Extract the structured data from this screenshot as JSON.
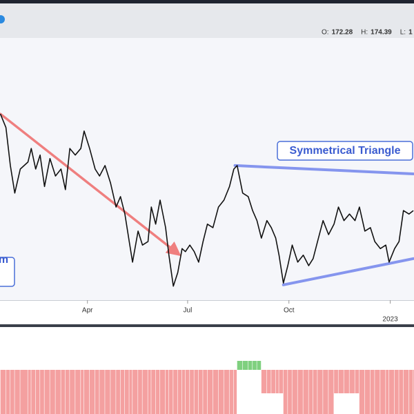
{
  "chart_data": [
    {
      "type": "line",
      "ohlc": [
        {
          "label": "O:",
          "value": "172.28"
        },
        {
          "label": "H:",
          "value": "174.39"
        },
        {
          "label": "L:",
          "value": "1"
        }
      ],
      "x": [
        11,
        16,
        20,
        24,
        29,
        36,
        39,
        43,
        47,
        51,
        56,
        61,
        66,
        70,
        74,
        79,
        84,
        87,
        92,
        97,
        101,
        106,
        111,
        116,
        120,
        124,
        128,
        131,
        136,
        140,
        145,
        148,
        152,
        156,
        161,
        164,
        168,
        172,
        176,
        179,
        183,
        187,
        191,
        195,
        199,
        204,
        209,
        214,
        219,
        223,
        226,
        231,
        236,
        240,
        244,
        248,
        253,
        257,
        261,
        264,
        268,
        272,
        276,
        281,
        286,
        291,
        295,
        299,
        304,
        309,
        314,
        318,
        323,
        328,
        333,
        337,
        342,
        347,
        351,
        356,
        361,
        364,
        369,
        373,
        377,
        382,
        386
      ],
      "values": [
        167.6,
        164.5,
        155.8,
        149.5,
        155.0,
        156.6,
        159.7,
        155.0,
        158.2,
        151.0,
        157.4,
        153.4,
        155.0,
        150.3,
        159.7,
        158.2,
        159.7,
        163.7,
        159.7,
        155.0,
        153.4,
        155.8,
        151.8,
        146.3,
        148.7,
        144.7,
        138.4,
        133.7,
        140.8,
        137.6,
        138.4,
        146.3,
        142.4,
        147.9,
        141.6,
        135.3,
        128.2,
        131.3,
        136.8,
        136.1,
        137.6,
        136.1,
        133.7,
        138.4,
        142.4,
        141.6,
        146.3,
        147.9,
        151.0,
        155.0,
        155.8,
        149.5,
        148.7,
        145.5,
        143.2,
        139.2,
        143.2,
        141.6,
        139.2,
        135.3,
        128.9,
        132.9,
        137.6,
        133.7,
        135.3,
        132.9,
        134.5,
        138.4,
        143.2,
        140.0,
        142.4,
        146.3,
        143.2,
        144.7,
        143.2,
        146.3,
        140.8,
        141.6,
        138.4,
        136.8,
        137.6,
        133.7,
        136.8,
        138.4,
        145.5,
        144.7,
        145.5
      ],
      "color": "#111111",
      "xlim": [
        10.6,
        386.6
      ],
      "ylim": [
        125,
        185
      ],
      "xticks": [
        {
          "value": 90,
          "label": "Apr"
        },
        {
          "value": 181,
          "label": "Jul"
        },
        {
          "value": 273,
          "label": "Oct"
        },
        {
          "value": 365,
          "label": "2023"
        }
      ],
      "drawings": [
        {
          "kind": "arrow",
          "color": "#ef7f7f",
          "points": [
            [
              11,
              167.6
            ],
            [
              170,
              136.1
            ]
          ]
        },
        {
          "kind": "trendline",
          "color": "#8595ee",
          "points": [
            [
              224,
              155.8
            ],
            [
              386,
              153.9
            ]
          ]
        },
        {
          "kind": "trendline",
          "color": "#8595ee",
          "points": [
            [
              268,
              128.5
            ],
            [
              386,
              134.5
            ]
          ]
        }
      ],
      "annotations": [
        "Symmetrical Triangle",
        "m"
      ]
    },
    {
      "type": "bar",
      "x": [
        11,
        16,
        20,
        24,
        29,
        36,
        39,
        43,
        47,
        51,
        56,
        61,
        66,
        70,
        74,
        79,
        84,
        87,
        92,
        97,
        101,
        106,
        111,
        116,
        120,
        124,
        128,
        131,
        136,
        140,
        145,
        148,
        152,
        156,
        161,
        164,
        168,
        172,
        176,
        179,
        183,
        187,
        191,
        195,
        199,
        204,
        209,
        214,
        219,
        223,
        226,
        231,
        236,
        240,
        244,
        248,
        253,
        257,
        261,
        264,
        268,
        272,
        276,
        281,
        286,
        291,
        295,
        299,
        304,
        309,
        314,
        318,
        323,
        328,
        333,
        337,
        342,
        347,
        351,
        356,
        361,
        364,
        369,
        373,
        377,
        382,
        386
      ],
      "values": [
        -64,
        -64,
        -64,
        -64,
        -64,
        -64,
        -64,
        -64,
        -64,
        -64,
        -64,
        -64,
        -64,
        -64,
        -64,
        -64,
        -64,
        -64,
        -64,
        -64,
        -64,
        -64,
        -64,
        -64,
        -64,
        -64,
        -64,
        -64,
        -64,
        -64,
        -64,
        -64,
        -64,
        -64,
        -64,
        -64,
        -64,
        -64,
        -64,
        -64,
        -64,
        -64,
        -64,
        -64,
        -64,
        -64,
        -64,
        -64,
        -64,
        -64,
        13,
        13,
        13,
        13,
        13,
        -34,
        -34,
        -34,
        -34,
        -34,
        -64,
        -64,
        -64,
        -64,
        -64,
        -64,
        -64,
        -64,
        -64,
        -64,
        -34,
        -34,
        -34,
        -34,
        -34,
        -64,
        -64,
        -64,
        -64,
        -64,
        -64,
        -64,
        -64,
        -64,
        -64,
        -64,
        -64
      ],
      "positive_color": "#7fd07f",
      "negative_color": "#f4a0a0",
      "xlim": [
        10.6,
        386.6
      ],
      "ylim": [
        -64,
        13
      ]
    }
  ]
}
